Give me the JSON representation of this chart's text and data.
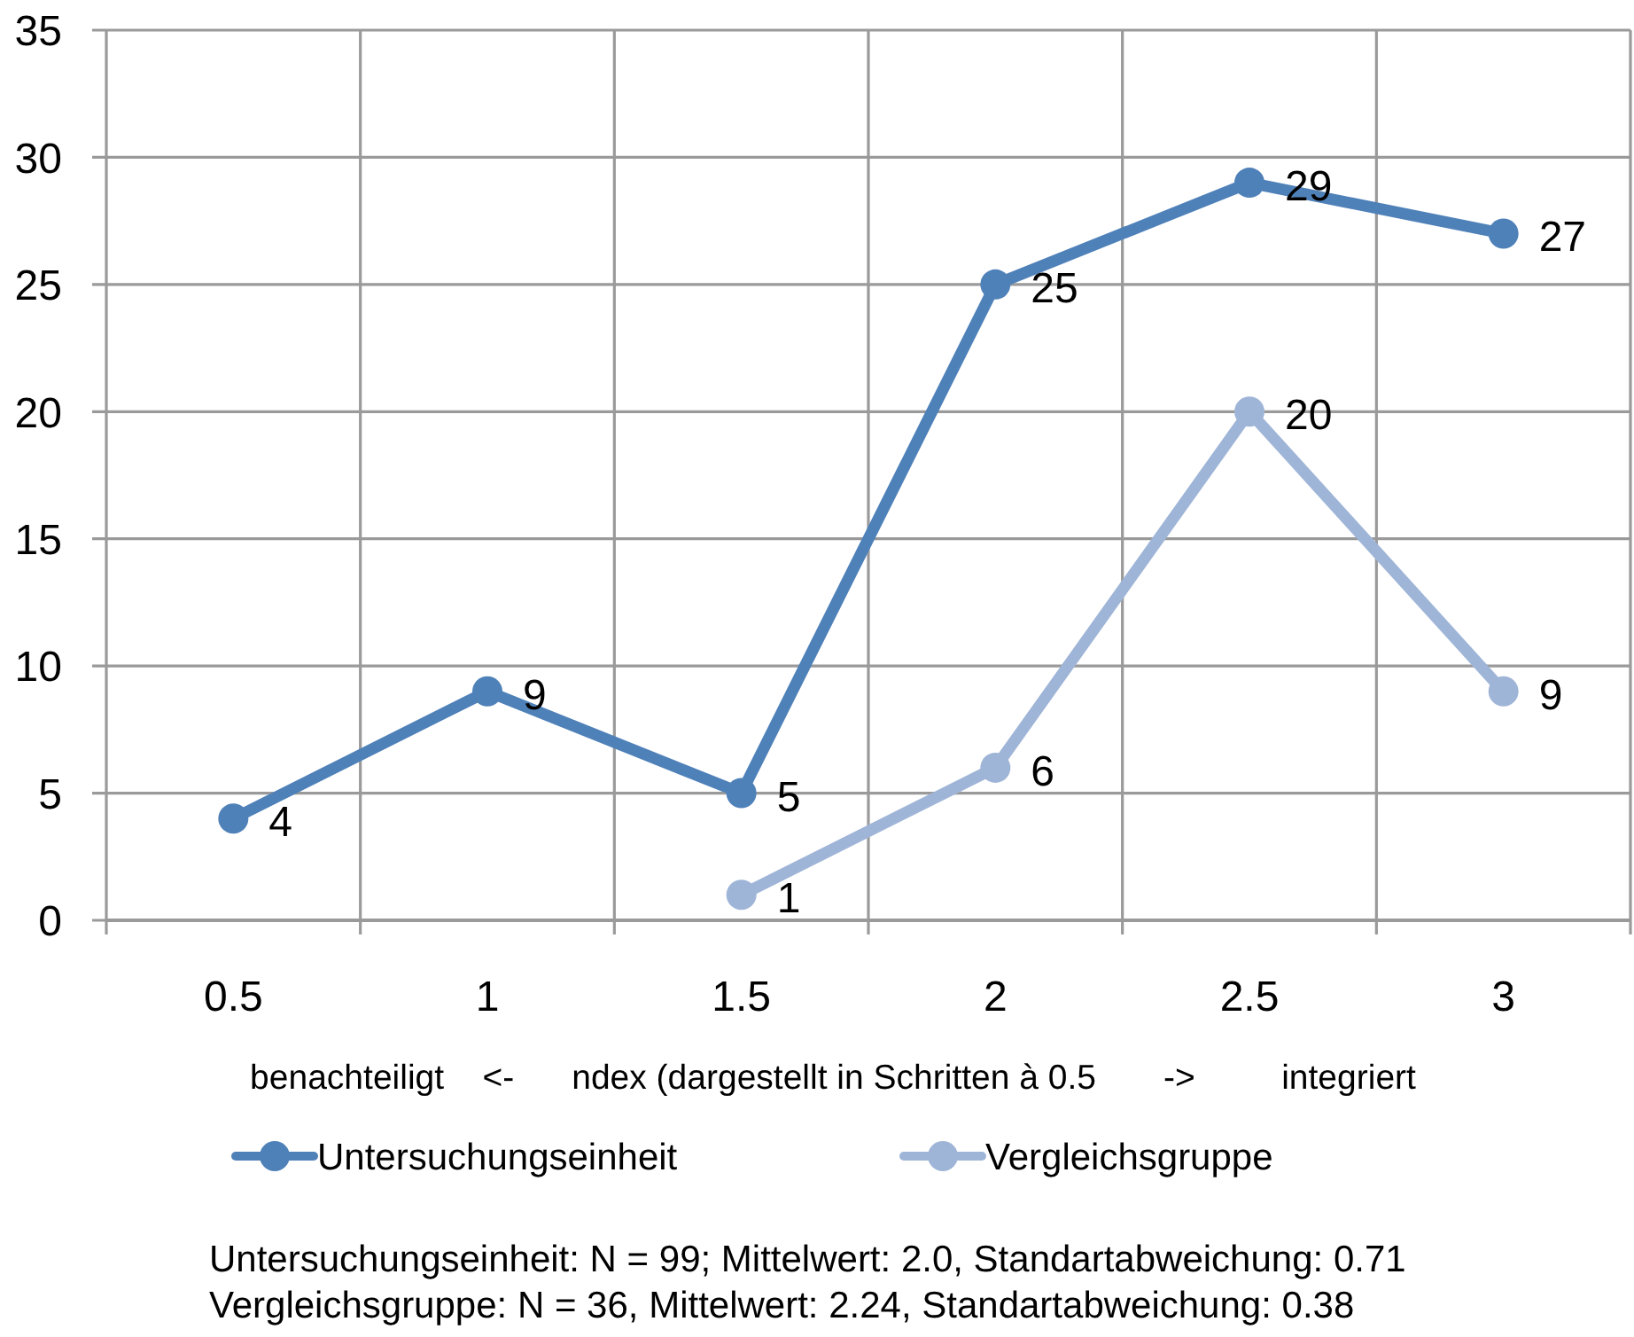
{
  "chart_data": {
    "type": "line",
    "categories": [
      "0.5",
      "1",
      "1.5",
      "2",
      "2.5",
      "3"
    ],
    "series": [
      {
        "name": "Untersuchungseinheit",
        "color": "#4f81b9",
        "values": [
          4,
          9,
          5,
          25,
          29,
          27
        ]
      },
      {
        "name": "Vergleichsgruppe",
        "color": "#9fb5d7",
        "values": [
          null,
          null,
          1,
          6,
          20,
          9
        ]
      }
    ],
    "xlabel": "benachteiligt    <-      ndex (dargestellt in Schritten à 0.5       ->         integriert",
    "ylim": [
      0,
      35
    ],
    "yticks": [
      0,
      5,
      10,
      15,
      20,
      25,
      30,
      35
    ],
    "grid": true,
    "legend": "bottom",
    "marker": "circle",
    "data_labels": true,
    "annotations": [
      "Untersuchungseinheit: N = 99; Mittelwert: 2.0, Standartabweichung: 0.71",
      "Vergleichsgruppe: N = 36, Mittelwert: 2.24, Standartabweichung: 0.38"
    ]
  }
}
